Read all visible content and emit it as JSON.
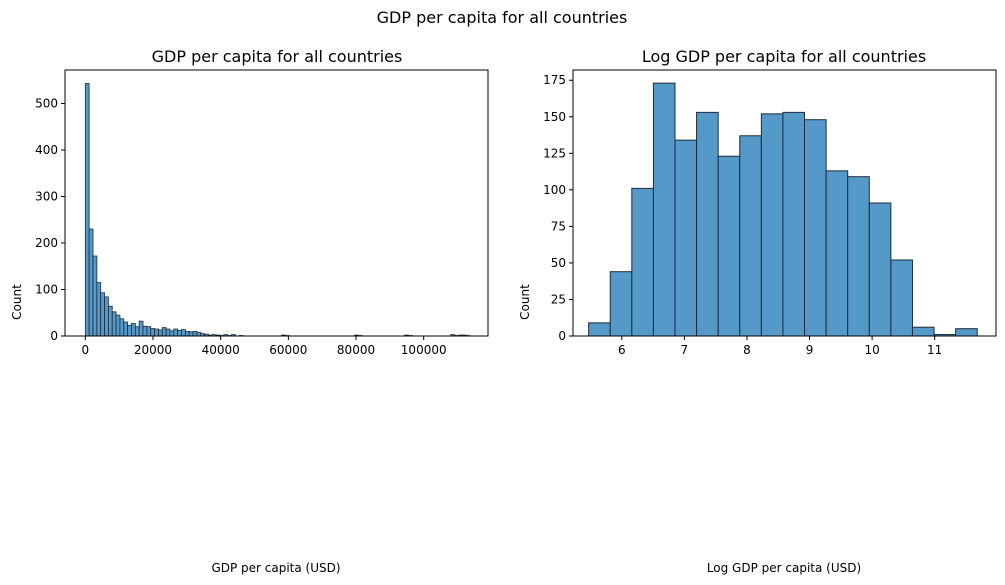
{
  "figure": {
    "suptitle": "GDP per capita for all countries"
  },
  "colors": {
    "bar_fill": "#5599c8",
    "bar_edge": "#1d2c3a"
  },
  "chart_data": [
    {
      "type": "bar",
      "title": "GDP per capita for all countries",
      "xlabel": "GDP per capita (USD)",
      "ylabel": "Count",
      "xlim": [
        -6000,
        119000
      ],
      "ylim": [
        0,
        572
      ],
      "xticks": [
        0,
        20000,
        40000,
        60000,
        80000,
        100000
      ],
      "yticks": [
        0,
        100,
        200,
        300,
        400,
        500
      ],
      "bin_start": 0,
      "bin_width": 1137,
      "values": [
        543,
        230,
        172,
        115,
        93,
        84,
        64,
        52,
        45,
        37,
        30,
        23,
        27,
        20,
        32,
        21,
        20,
        16,
        15,
        13,
        18,
        15,
        11,
        15,
        12,
        14,
        10,
        9,
        10,
        8,
        5,
        4,
        2,
        3,
        2,
        1,
        3,
        1,
        3,
        0,
        1,
        0,
        0,
        0,
        0,
        0,
        0,
        0,
        0,
        0,
        0,
        2,
        1,
        0,
        0,
        0,
        0,
        0,
        0,
        0,
        0,
        0,
        0,
        0,
        0,
        0,
        0,
        0,
        0,
        0,
        2,
        1,
        0,
        0,
        0,
        0,
        0,
        0,
        0,
        0,
        0,
        0,
        0,
        2,
        1,
        0,
        0,
        0,
        0,
        0,
        0,
        0,
        0,
        0,
        0,
        3,
        1,
        2,
        2,
        1
      ]
    },
    {
      "type": "bar",
      "title": "Log GDP per capita for all countries",
      "xlabel": "Log GDP per capita (USD)",
      "ylabel": "Count",
      "xlim": [
        5.22,
        11.98
      ],
      "ylim": [
        0,
        182
      ],
      "xticks": [
        6,
        7,
        8,
        9,
        10,
        11
      ],
      "yticks": [
        0,
        25,
        50,
        75,
        100,
        125,
        150,
        175
      ],
      "bin_start": 5.47,
      "bin_width": 0.345,
      "values": [
        9,
        44,
        101,
        173,
        134,
        153,
        123,
        137,
        152,
        153,
        148,
        113,
        109,
        91,
        52,
        6,
        1,
        5
      ]
    }
  ]
}
